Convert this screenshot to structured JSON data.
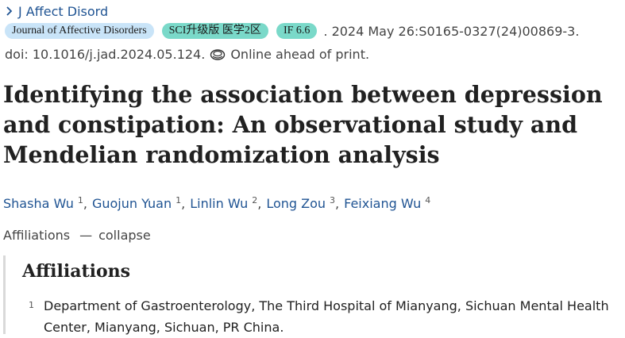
{
  "journal": {
    "link_label": "J Affect Disord"
  },
  "badges": {
    "journal_full": "Journal of Affective Disorders",
    "sci": "SCI升级版 医学2区",
    "impact_factor": "IF 6.6"
  },
  "citation": {
    "date_pages": ". 2024 May 26:S0165-0327(24)00869-3.",
    "doi": "doi: 10.1016/j.jad.2024.05.124.",
    "status": "Online ahead of print."
  },
  "article": {
    "title": "Identifying the association between depression and constipation: An observational study and Mendelian randomization analysis"
  },
  "authors": [
    {
      "name": "Shasha Wu",
      "aff": "1"
    },
    {
      "name": "Guojun Yuan",
      "aff": "1"
    },
    {
      "name": "Linlin Wu",
      "aff": "2"
    },
    {
      "name": "Long Zou",
      "aff": "3"
    },
    {
      "name": "Feixiang Wu",
      "aff": "4"
    }
  ],
  "affiliations_toggle": {
    "label": "Affiliations",
    "dash": "—",
    "action": "collapse"
  },
  "affiliations": {
    "heading": "Affiliations",
    "items": [
      {
        "num": "1",
        "text": "Department of Gastroenterology, The Third Hospital of Mianyang, Sichuan Mental Health Center, Mianyang, Sichuan, PR China."
      }
    ]
  },
  "colors": {
    "link": "#205493",
    "badge_blue": "#c9e4f8",
    "badge_teal": "#7ad9c9",
    "text": "#212121"
  },
  "icons": {
    "journal_chevron": "chevron-right-icon",
    "online_print": "online-print-icon"
  }
}
